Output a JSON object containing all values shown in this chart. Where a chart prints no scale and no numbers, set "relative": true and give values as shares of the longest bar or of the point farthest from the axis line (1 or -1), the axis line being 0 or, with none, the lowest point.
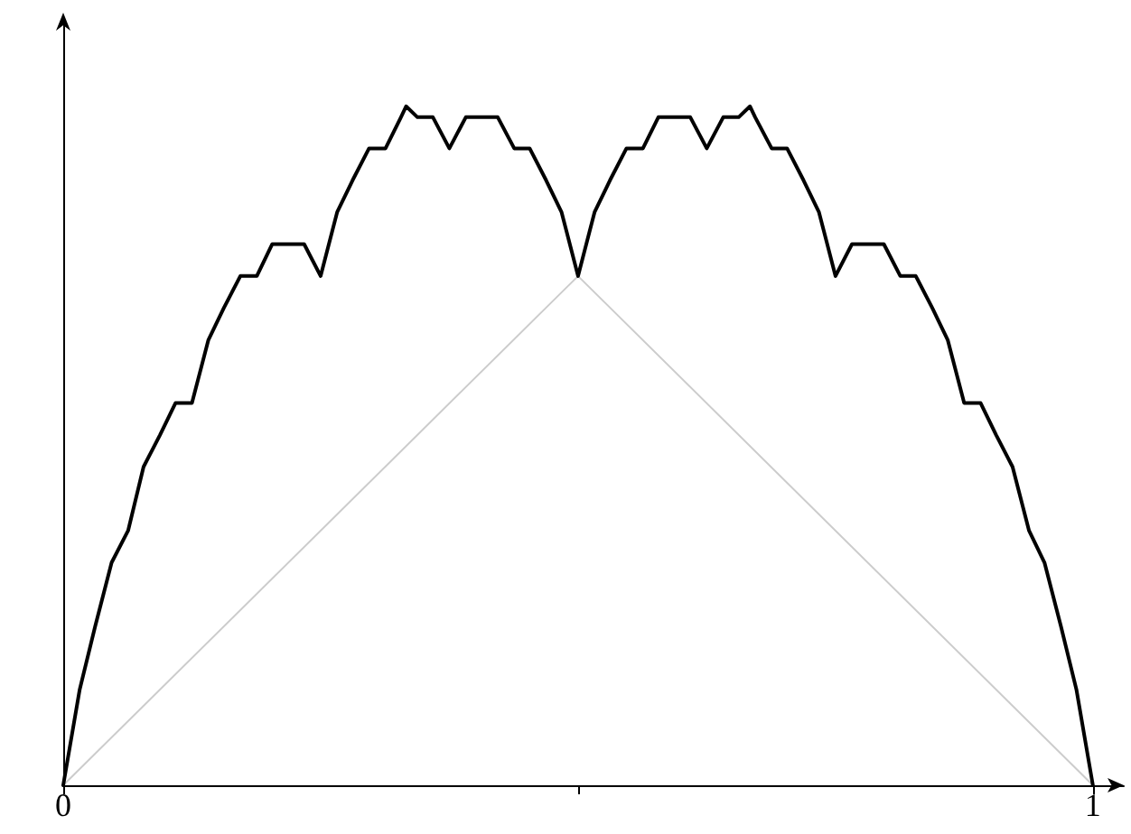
{
  "chart_data": {
    "type": "line",
    "relative": true,
    "xlim": [
      0,
      1.03
    ],
    "xticks": [
      0,
      {
        "value": 0.5,
        "label": null
      },
      1
    ],
    "tick_labels": "x",
    "grid": false,
    "marker": "none",
    "line_style": "solid",
    "series": [
      {
        "color": "#cccccc",
        "x": [
          0,
          0.5,
          1
        ],
        "values": [
          0,
          0.75,
          0
        ]
      },
      {
        "color": "#000000",
        "x": [
          0,
          0.016,
          0.031,
          0.047,
          0.063,
          0.078,
          0.094,
          0.109,
          0.125,
          0.141,
          0.156,
          0.172,
          0.188,
          0.203,
          0.219,
          0.234,
          0.25,
          0.266,
          0.281,
          0.297,
          0.313,
          0.328,
          0.333,
          0.344,
          0.359,
          0.375,
          0.391,
          0.406,
          0.422,
          0.438,
          0.453,
          0.469,
          0.484,
          0.5,
          0.516,
          0.531,
          0.547,
          0.563,
          0.578,
          0.594,
          0.609,
          0.625,
          0.641,
          0.656,
          0.667,
          0.672,
          0.688,
          0.703,
          0.719,
          0.734,
          0.75,
          0.766,
          0.781,
          0.797,
          0.813,
          0.828,
          0.844,
          0.859,
          0.875,
          0.891,
          0.906,
          0.922,
          0.938,
          0.953,
          0.969,
          0.984,
          1
        ],
        "values": [
          0,
          0.141,
          0.234,
          0.328,
          0.375,
          0.469,
          0.516,
          0.563,
          0.563,
          0.656,
          0.703,
          0.75,
          0.75,
          0.797,
          0.797,
          0.797,
          0.75,
          0.844,
          0.891,
          0.938,
          0.938,
          0.984,
          1,
          0.984,
          0.984,
          0.938,
          0.984,
          0.984,
          0.984,
          0.938,
          0.938,
          0.891,
          0.844,
          0.75,
          0.844,
          0.891,
          0.938,
          0.938,
          0.984,
          0.984,
          0.984,
          0.938,
          0.984,
          0.984,
          1,
          0.984,
          0.938,
          0.938,
          0.891,
          0.844,
          0.75,
          0.797,
          0.797,
          0.797,
          0.75,
          0.75,
          0.703,
          0.656,
          0.563,
          0.563,
          0.516,
          0.469,
          0.375,
          0.328,
          0.234,
          0.141,
          0
        ]
      }
    ]
  }
}
